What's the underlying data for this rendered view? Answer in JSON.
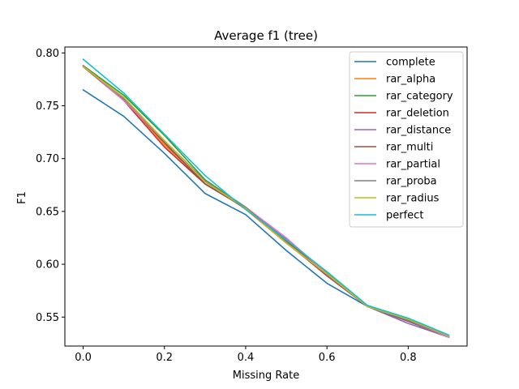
{
  "chart_data": {
    "type": "line",
    "title": "Average f1 (tree)",
    "xlabel": "Missing Rate",
    "ylabel": "F1",
    "xlim": [
      -0.045,
      0.945
    ],
    "ylim": [
      0.5226,
      0.8056
    ],
    "x": [
      0.0,
      0.1,
      0.2,
      0.3,
      0.4,
      0.5,
      0.6,
      0.7,
      0.8,
      0.9
    ],
    "xticks": [
      0.0,
      0.2,
      0.4,
      0.6,
      0.8
    ],
    "xtick_labels": [
      "0.0",
      "0.2",
      "0.4",
      "0.6",
      "0.8"
    ],
    "yticks": [
      0.55,
      0.6,
      0.65,
      0.7,
      0.75,
      0.8
    ],
    "ytick_labels": [
      "0.55",
      "0.60",
      "0.65",
      "0.70",
      "0.75",
      "0.80"
    ],
    "grid": false,
    "legend_position": "top-right",
    "series": [
      {
        "name": "complete",
        "color": "#1f77b4",
        "values": [
          0.765,
          0.74,
          0.705,
          0.667,
          0.647,
          0.613,
          0.582,
          0.56,
          0.546,
          0.531
        ]
      },
      {
        "name": "rar_alpha",
        "color": "#ff7f0e",
        "values": [
          0.787,
          0.757,
          0.713,
          0.678,
          0.652,
          0.62,
          0.59,
          0.56,
          0.547,
          0.532
        ]
      },
      {
        "name": "rar_category",
        "color": "#2ca02c",
        "values": [
          0.788,
          0.76,
          0.722,
          0.68,
          0.654,
          0.622,
          0.592,
          0.56,
          0.548,
          0.532
        ]
      },
      {
        "name": "rar_deletion",
        "color": "#d62728",
        "values": [
          0.787,
          0.755,
          0.711,
          0.676,
          0.653,
          0.621,
          0.589,
          0.56,
          0.547,
          0.532
        ]
      },
      {
        "name": "rar_distance",
        "color": "#9467bd",
        "values": [
          0.787,
          0.757,
          0.716,
          0.678,
          0.653,
          0.624,
          0.59,
          0.56,
          0.544,
          0.531
        ]
      },
      {
        "name": "rar_multi",
        "color": "#8c564b",
        "values": [
          0.787,
          0.756,
          0.715,
          0.676,
          0.653,
          0.622,
          0.59,
          0.56,
          0.546,
          0.531
        ]
      },
      {
        "name": "rar_partial",
        "color": "#e377c2",
        "values": [
          0.788,
          0.755,
          0.717,
          0.678,
          0.654,
          0.625,
          0.591,
          0.56,
          0.547,
          0.531
        ]
      },
      {
        "name": "rar_proba",
        "color": "#7f7f7f",
        "values": [
          0.788,
          0.757,
          0.717,
          0.679,
          0.654,
          0.621,
          0.59,
          0.56,
          0.547,
          0.532
        ]
      },
      {
        "name": "rar_radius",
        "color": "#bcbd22",
        "values": [
          0.787,
          0.758,
          0.717,
          0.678,
          0.653,
          0.62,
          0.591,
          0.56,
          0.548,
          0.532
        ]
      },
      {
        "name": "perfect",
        "color": "#17becf",
        "values": [
          0.794,
          0.762,
          0.723,
          0.684,
          0.652,
          0.623,
          0.593,
          0.561,
          0.549,
          0.533
        ]
      }
    ]
  }
}
